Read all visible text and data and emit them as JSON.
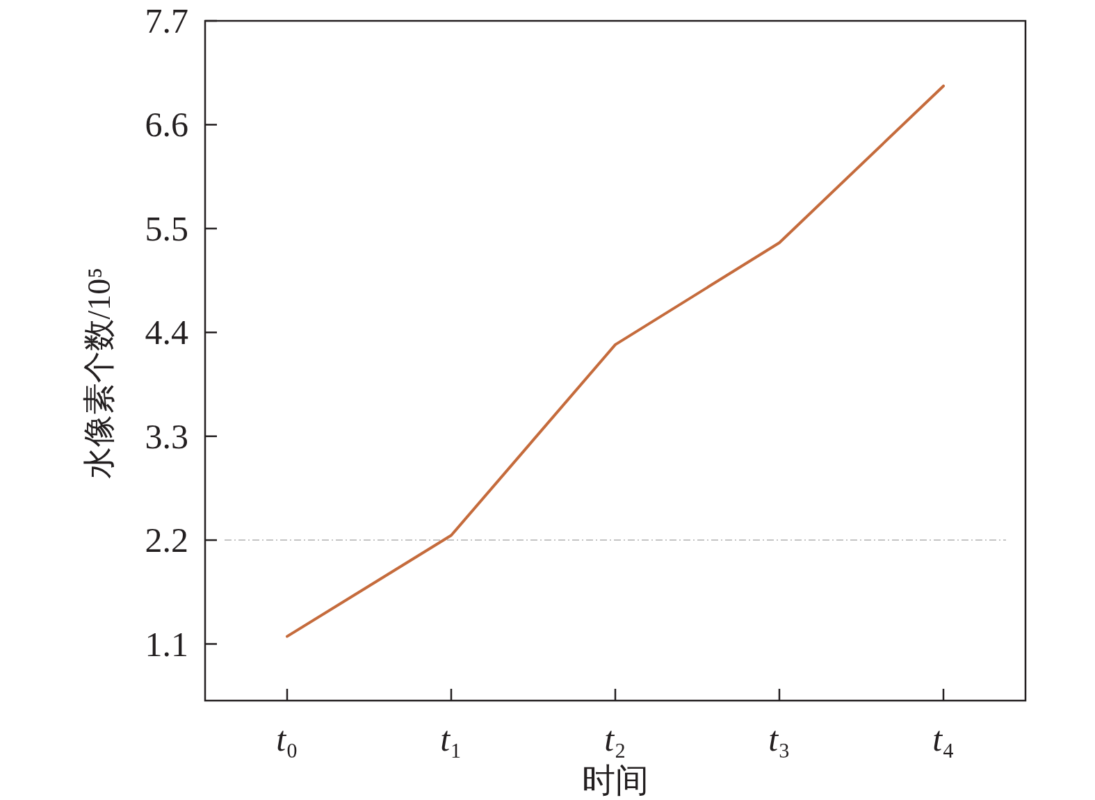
{
  "chart_data": {
    "type": "line",
    "xlabel": "时间",
    "ylabel": "水像素个数/10⁵",
    "categories": [
      "t₀",
      "t₁",
      "t₂",
      "t₃",
      "t₄"
    ],
    "series": [
      {
        "color": "#c56b3c",
        "values": [
          1.18,
          2.25,
          4.27,
          5.35,
          7.01
        ]
      }
    ],
    "ylim": [
      0.5,
      7.7
    ],
    "yticks": [
      1.1,
      2.2,
      3.3,
      4.4,
      5.5,
      6.6,
      7.7
    ],
    "ref_lines": [
      {
        "axis": "y",
        "value": 2.2,
        "color": "#c4c4c4",
        "line_style": "dashed"
      }
    ]
  }
}
